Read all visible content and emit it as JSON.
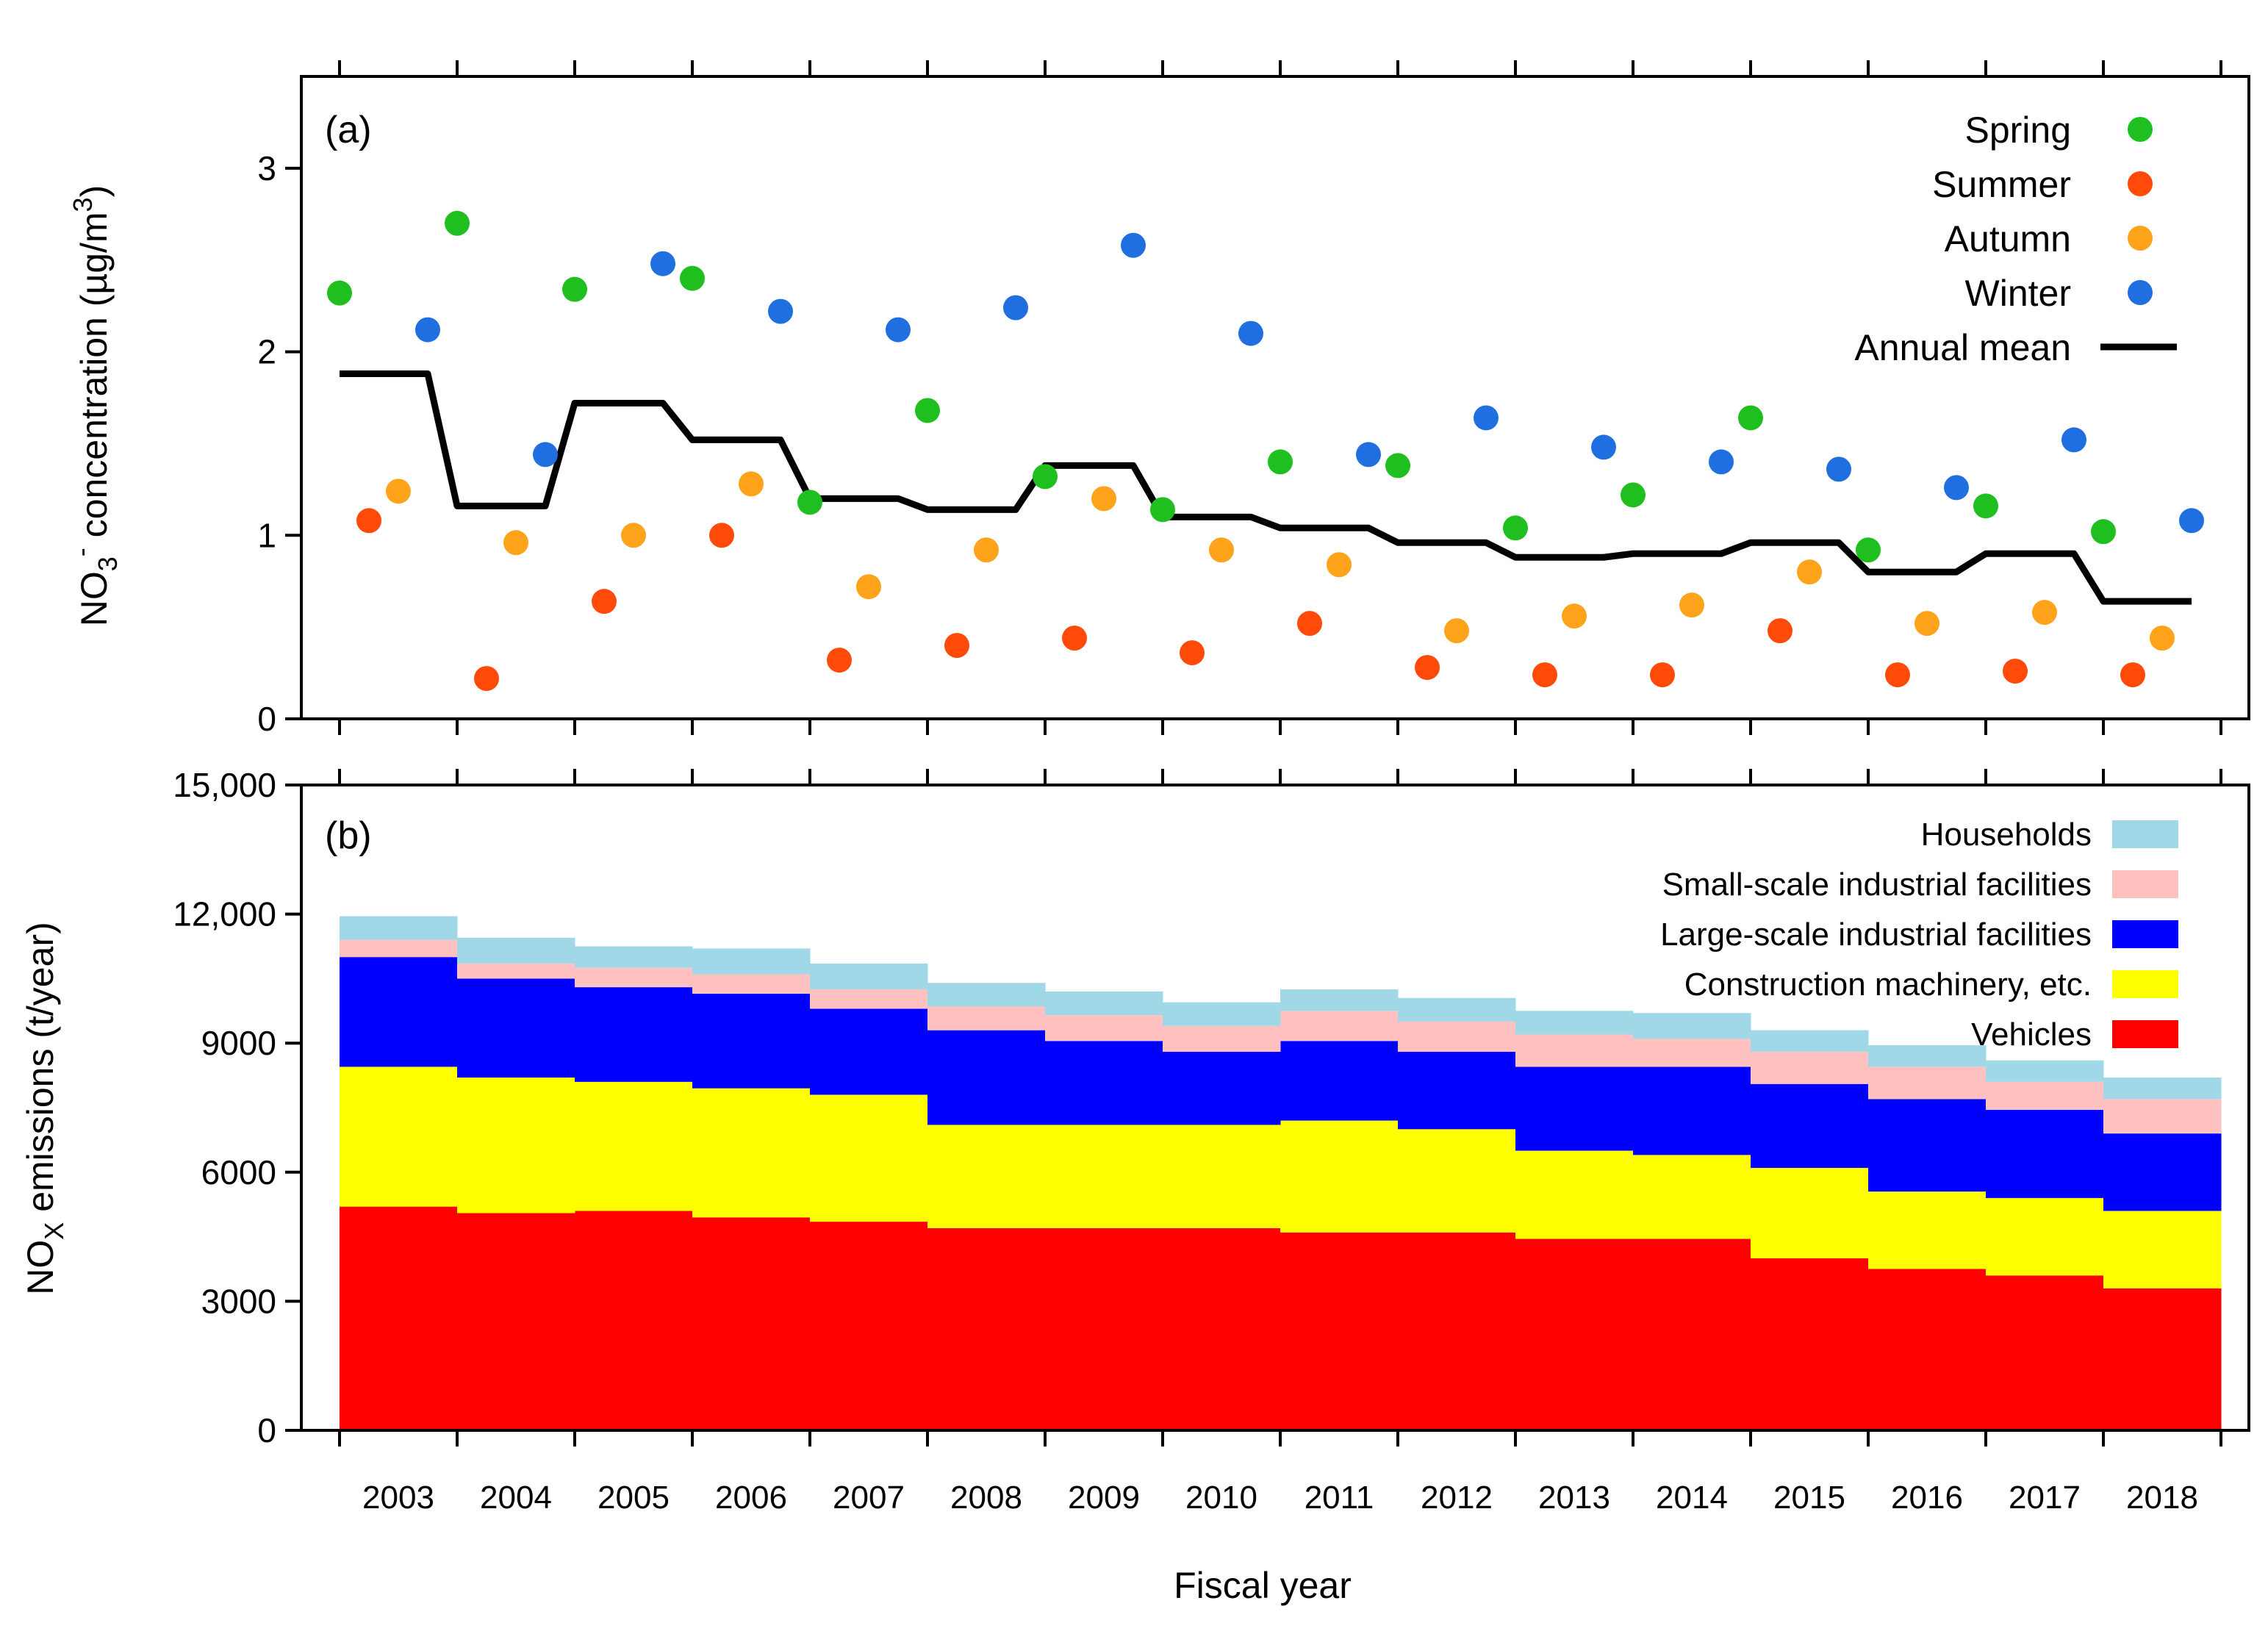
{
  "xlabel": "Fiscal year",
  "years": [
    "2003",
    "2004",
    "2005",
    "2006",
    "2007",
    "2008",
    "2009",
    "2010",
    "2011",
    "2012",
    "2013",
    "2014",
    "2015",
    "2016",
    "2017",
    "2018"
  ],
  "chart_data": [
    {
      "type": "scatter",
      "panel_label": "(a)",
      "ylabel_main": "NO",
      "ylabel_sub": "3",
      "ylabel_sup": "-",
      "ylabel_rest": " concentration (µg/m",
      "ylabel_unit_sup": "3",
      "ylabel_end": ")",
      "ylim": [
        0,
        3.5
      ],
      "yticks": [
        0,
        1,
        2,
        3
      ],
      "ytick_labels": [
        "0",
        "1",
        "2",
        "3"
      ],
      "grid": false,
      "legend_position": "top-right",
      "series": [
        {
          "name": "Spring",
          "color": "#1fbf1f",
          "values": [
            2.32,
            2.7,
            2.34,
            2.4,
            1.18,
            1.68,
            1.32,
            1.14,
            1.4,
            1.38,
            1.04,
            1.22,
            1.64,
            0.92,
            1.16,
            1.02
          ]
        },
        {
          "name": "Summer",
          "color": "#ff4a0a",
          "values": [
            1.08,
            0.22,
            0.64,
            1.0,
            0.32,
            0.4,
            0.44,
            0.36,
            0.52,
            0.28,
            0.24,
            0.24,
            0.48,
            0.24,
            0.26,
            0.24
          ]
        },
        {
          "name": "Autumn",
          "color": "#ffa31a",
          "values": [
            1.24,
            0.96,
            1.0,
            1.28,
            0.72,
            0.92,
            1.2,
            0.92,
            0.84,
            0.48,
            0.56,
            0.62,
            0.8,
            0.52,
            0.58,
            0.44
          ]
        },
        {
          "name": "Winter",
          "color": "#1f6fe0",
          "values": [
            2.12,
            1.44,
            2.48,
            2.22,
            2.12,
            2.24,
            2.58,
            2.1,
            1.44,
            1.64,
            1.48,
            1.4,
            1.36,
            1.26,
            1.52,
            1.08
          ]
        },
        {
          "name": "Annual mean",
          "color": "#000000",
          "style": "step-line",
          "values": [
            1.88,
            1.16,
            1.72,
            1.52,
            1.2,
            1.14,
            1.38,
            1.1,
            1.04,
            0.96,
            0.88,
            0.9,
            0.96,
            0.8,
            0.9,
            0.64
          ]
        }
      ]
    },
    {
      "type": "area",
      "stacked": true,
      "panel_label": "(b)",
      "ylabel_main": "NO",
      "ylabel_sub": "X",
      "ylabel_rest": " emissions (t/year)",
      "ylim": [
        0,
        15000
      ],
      "yticks": [
        0,
        3000,
        6000,
        9000,
        12000,
        15000
      ],
      "ytick_labels": [
        "0",
        "3000",
        "6000",
        "9000",
        "12,000",
        "15,000"
      ],
      "grid": false,
      "legend_position": "top-right",
      "series": [
        {
          "name": "Vehicles",
          "color": "#ff0000",
          "values": [
            5200,
            5050,
            5100,
            4950,
            4850,
            4700,
            4700,
            4700,
            4600,
            4600,
            4450,
            4450,
            4000,
            3750,
            3600,
            3300
          ]
        },
        {
          "name": "Construction machinery, etc.",
          "color": "#ffff00",
          "values": [
            3250,
            3150,
            3000,
            3000,
            2950,
            2400,
            2400,
            2400,
            2600,
            2400,
            2050,
            1950,
            2100,
            1800,
            1800,
            1800
          ]
        },
        {
          "name": "Large-scale industrial facilities",
          "color": "#0000ff",
          "values": [
            2550,
            2300,
            2200,
            2200,
            2000,
            2200,
            1950,
            1700,
            1850,
            1800,
            1950,
            2050,
            1950,
            2150,
            2050,
            1800
          ]
        },
        {
          "name": "Small-scale industrial facilities",
          "color": "#ffc0c0",
          "values": [
            400,
            350,
            450,
            450,
            450,
            550,
            600,
            600,
            700,
            700,
            750,
            650,
            750,
            750,
            650,
            800
          ]
        },
        {
          "name": "Households",
          "color": "#a0d8e8",
          "values": [
            550,
            600,
            500,
            600,
            600,
            550,
            550,
            550,
            500,
            550,
            550,
            600,
            500,
            500,
            500,
            500
          ]
        }
      ]
    }
  ]
}
